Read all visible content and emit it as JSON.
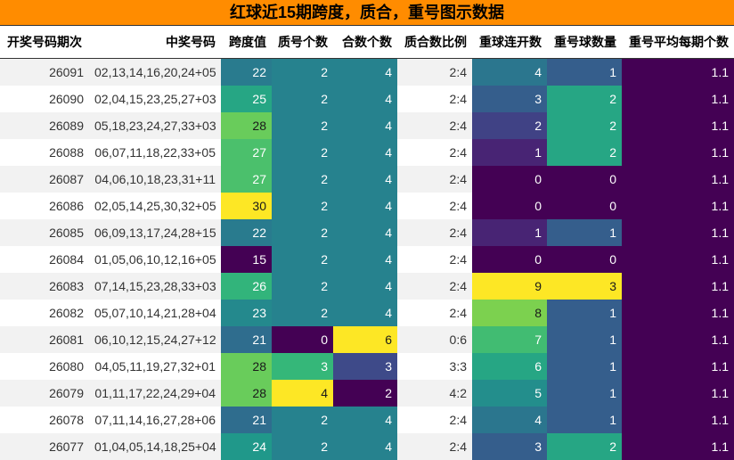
{
  "title": "红球近15期跨度，质合，重号图示数据",
  "headers": [
    "开奖号码期次",
    "中奖号码",
    "跨度值",
    "质号个数",
    "合数个数",
    "质合数比例",
    "重球连开数",
    "重号球数量",
    "重号平均每期个数"
  ],
  "rows": [
    {
      "issue": "26091",
      "numbers": "02,13,14,16,20,24+05",
      "span": "22",
      "prime": "2",
      "composite": "4",
      "ratio": "2:4",
      "repeat_streak": "4",
      "repeat_count": "1",
      "repeat_avg": "1.1"
    },
    {
      "issue": "26090",
      "numbers": "02,04,15,23,25,27+03",
      "span": "25",
      "prime": "2",
      "composite": "4",
      "ratio": "2:4",
      "repeat_streak": "3",
      "repeat_count": "2",
      "repeat_avg": "1.1"
    },
    {
      "issue": "26089",
      "numbers": "05,18,23,24,27,33+03",
      "span": "28",
      "prime": "2",
      "composite": "4",
      "ratio": "2:4",
      "repeat_streak": "2",
      "repeat_count": "2",
      "repeat_avg": "1.1"
    },
    {
      "issue": "26088",
      "numbers": "06,07,11,18,22,33+05",
      "span": "27",
      "prime": "2",
      "composite": "4",
      "ratio": "2:4",
      "repeat_streak": "1",
      "repeat_count": "2",
      "repeat_avg": "1.1"
    },
    {
      "issue": "26087",
      "numbers": "04,06,10,18,23,31+11",
      "span": "27",
      "prime": "2",
      "composite": "4",
      "ratio": "2:4",
      "repeat_streak": "0",
      "repeat_count": "0",
      "repeat_avg": "1.1"
    },
    {
      "issue": "26086",
      "numbers": "02,05,14,25,30,32+05",
      "span": "30",
      "prime": "2",
      "composite": "4",
      "ratio": "2:4",
      "repeat_streak": "0",
      "repeat_count": "0",
      "repeat_avg": "1.1"
    },
    {
      "issue": "26085",
      "numbers": "06,09,13,17,24,28+15",
      "span": "22",
      "prime": "2",
      "composite": "4",
      "ratio": "2:4",
      "repeat_streak": "1",
      "repeat_count": "1",
      "repeat_avg": "1.1"
    },
    {
      "issue": "26084",
      "numbers": "01,05,06,10,12,16+05",
      "span": "15",
      "prime": "2",
      "composite": "4",
      "ratio": "2:4",
      "repeat_streak": "0",
      "repeat_count": "0",
      "repeat_avg": "1.1"
    },
    {
      "issue": "26083",
      "numbers": "07,14,15,23,28,33+03",
      "span": "26",
      "prime": "2",
      "composite": "4",
      "ratio": "2:4",
      "repeat_streak": "9",
      "repeat_count": "3",
      "repeat_avg": "1.1"
    },
    {
      "issue": "26082",
      "numbers": "05,07,10,14,21,28+04",
      "span": "23",
      "prime": "2",
      "composite": "4",
      "ratio": "2:4",
      "repeat_streak": "8",
      "repeat_count": "1",
      "repeat_avg": "1.1"
    },
    {
      "issue": "26081",
      "numbers": "06,10,12,15,24,27+12",
      "span": "21",
      "prime": "0",
      "composite": "6",
      "ratio": "0:6",
      "repeat_streak": "7",
      "repeat_count": "1",
      "repeat_avg": "1.1"
    },
    {
      "issue": "26080",
      "numbers": "04,05,11,19,27,32+01",
      "span": "28",
      "prime": "3",
      "composite": "3",
      "ratio": "3:3",
      "repeat_streak": "6",
      "repeat_count": "1",
      "repeat_avg": "1.1"
    },
    {
      "issue": "26079",
      "numbers": "01,11,17,22,24,29+04",
      "span": "28",
      "prime": "4",
      "composite": "2",
      "ratio": "4:2",
      "repeat_streak": "5",
      "repeat_count": "1",
      "repeat_avg": "1.1"
    },
    {
      "issue": "26078",
      "numbers": "07,11,14,16,27,28+06",
      "span": "21",
      "prime": "2",
      "composite": "4",
      "ratio": "2:4",
      "repeat_streak": "4",
      "repeat_count": "1",
      "repeat_avg": "1.1"
    },
    {
      "issue": "26077",
      "numbers": "01,04,05,14,18,25+04",
      "span": "24",
      "prime": "2",
      "composite": "4",
      "ratio": "2:4",
      "repeat_streak": "3",
      "repeat_count": "2",
      "repeat_avg": "1.1"
    }
  ],
  "colors": {
    "title_bg": "#ff8c00",
    "heat_low": "#440154",
    "heat_mid": "#21918c",
    "heat_high": "#fde725"
  }
}
